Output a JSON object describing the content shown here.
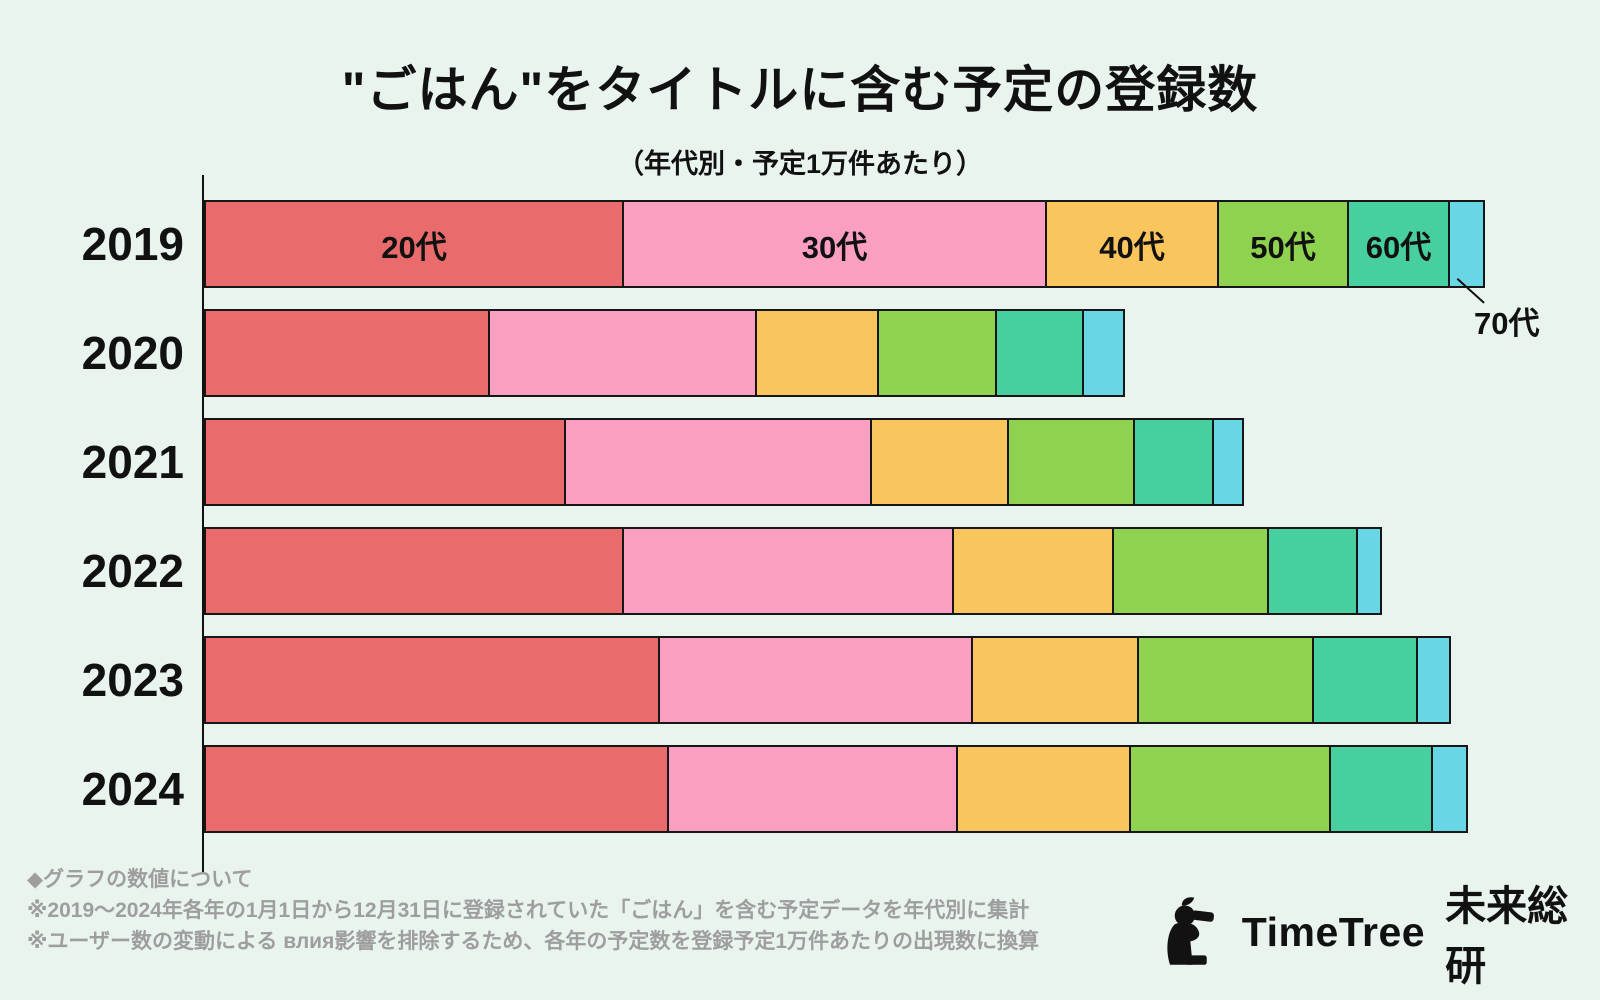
{
  "title": "\"ごはん\"をタイトルに含む予定の登録数",
  "subtitle": "（年代別・予定1万件あたり）",
  "callout_label": "70代",
  "footer": {
    "heading": "◆グラフの数値について",
    "note1": "※2019～2024年各年の1月1日から12月31日に登録されていた「ごはん」を含む予定データを年代別に集計",
    "note2": "※ユーザー数の変動による влия影響を排除するため、各年の予定数を登録予定1万件あたりの出現数に換算"
  },
  "logo": {
    "brand": "TimeTree",
    "org": "未来総研"
  },
  "colors": {
    "background": "#e9f4ee",
    "bar_border": "#161616",
    "text": "#111111",
    "note_text": "#9e9e9e"
  },
  "chart_data": {
    "type": "bar",
    "orientation": "horizontal",
    "stacked": true,
    "title": "\"ごはん\"をタイトルに含む予定の登録数",
    "subtitle": "（年代別・予定1万件あたり）",
    "xlabel": "",
    "ylabel": "",
    "value_axis_hidden": true,
    "value_unit": "relative segment width (px on 1600px canvas; no numeric axis shown)",
    "legend_position": "labels inside first bar, 70代 as external callout",
    "categories": [
      "2019",
      "2020",
      "2021",
      "2022",
      "2023",
      "2024"
    ],
    "series": [
      {
        "name": "20代",
        "color": "#e96b6b",
        "values": [
          420,
          286,
          362,
          420,
          456,
          465
        ]
      },
      {
        "name": "30代",
        "color": "#fa9fc1",
        "values": [
          423,
          267,
          306,
          330,
          313,
          289
        ]
      },
      {
        "name": "40代",
        "color": "#fbc55e",
        "values": [
          172,
          122,
          137,
          160,
          166,
          173
        ]
      },
      {
        "name": "50代",
        "color": "#8fd24f",
        "values": [
          130,
          118,
          126,
          155,
          175,
          200
        ]
      },
      {
        "name": "60代",
        "color": "#47cf9e",
        "values": [
          101,
          87,
          79,
          89,
          104,
          102
        ]
      },
      {
        "name": "70代",
        "color": "#69d6e5",
        "values": [
          35,
          41,
          30,
          24,
          33,
          35
        ]
      }
    ],
    "bar_labels_on_first_bar": [
      "20代",
      "30代",
      "40代",
      "50代",
      "60代"
    ],
    "callout": "70代"
  }
}
